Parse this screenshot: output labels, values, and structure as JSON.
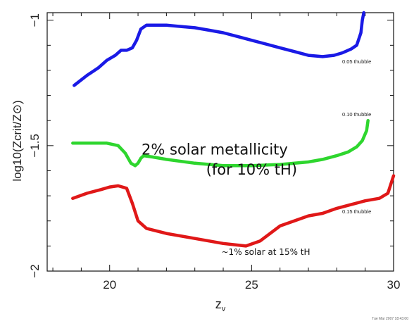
{
  "chart_data": {
    "type": "line",
    "xlabel": "z",
    "xlabel_sub": "v",
    "ylabel": "log10(Zcrit/Z⊙)",
    "xlim": [
      17.8,
      30
    ],
    "ylim": [
      -2,
      -0.97
    ],
    "x_ticks": [
      20,
      25,
      30
    ],
    "y_ticks": [
      -1,
      -1.5,
      -2
    ],
    "x_tick_labels": [
      "20",
      "25",
      "30"
    ],
    "y_tick_labels": [
      "−1",
      "−1.5",
      "−2"
    ],
    "series": [
      {
        "name": "0.05 thubble",
        "color": "#1a1ae6",
        "x": [
          18.75,
          19.2,
          19.6,
          19.9,
          20.2,
          20.4,
          20.6,
          20.8,
          20.95,
          21.1,
          21.3,
          21.6,
          22.0,
          22.5,
          23.0,
          23.5,
          24.0,
          24.5,
          25.0,
          25.5,
          26.0,
          26.5,
          27.0,
          27.5,
          27.9,
          28.2,
          28.5,
          28.7,
          28.85,
          28.9,
          28.95
        ],
        "values": [
          -1.26,
          -1.22,
          -1.19,
          -1.16,
          -1.14,
          -1.12,
          -1.12,
          -1.11,
          -1.08,
          -1.035,
          -1.02,
          -1.02,
          -1.02,
          -1.025,
          -1.03,
          -1.04,
          -1.05,
          -1.065,
          -1.08,
          -1.095,
          -1.11,
          -1.125,
          -1.14,
          -1.145,
          -1.14,
          -1.13,
          -1.115,
          -1.1,
          -1.05,
          -1.0,
          -0.97
        ]
      },
      {
        "name": "0.10 thubble",
        "color": "#2ed62e",
        "x": [
          18.7,
          19.3,
          19.9,
          20.3,
          20.55,
          20.75,
          20.9,
          21.0,
          21.1,
          21.2,
          21.5,
          22.0,
          23.0,
          24.0,
          25.0,
          26.0,
          27.0,
          27.5,
          28.0,
          28.4,
          28.7,
          28.9,
          29.05,
          29.1
        ],
        "values": [
          -1.49,
          -1.49,
          -1.49,
          -1.5,
          -1.53,
          -1.57,
          -1.58,
          -1.57,
          -1.55,
          -1.54,
          -1.545,
          -1.555,
          -1.57,
          -1.58,
          -1.58,
          -1.575,
          -1.565,
          -1.555,
          -1.54,
          -1.525,
          -1.505,
          -1.48,
          -1.44,
          -1.4
        ]
      },
      {
        "name": "0.15 thubble",
        "color": "#e01818",
        "x": [
          18.7,
          19.2,
          19.7,
          20.0,
          20.3,
          20.6,
          20.8,
          21.0,
          21.3,
          22.0,
          23.0,
          24.0,
          24.8,
          25.3,
          26.0,
          26.5,
          27.0,
          27.5,
          28.0,
          28.5,
          29.0,
          29.5,
          29.8,
          30.0
        ],
        "values": [
          -1.71,
          -1.69,
          -1.675,
          -1.665,
          -1.66,
          -1.67,
          -1.73,
          -1.8,
          -1.83,
          -1.85,
          -1.87,
          -1.89,
          -1.9,
          -1.88,
          -1.82,
          -1.8,
          -1.78,
          -1.77,
          -1.75,
          -1.735,
          -1.72,
          -1.71,
          -1.69,
          -1.62
        ]
      }
    ],
    "annotations": [
      {
        "text": "2% solar metallicity",
        "x": 23.7,
        "y": -1.535
      },
      {
        "text": "(for 10% tH)",
        "x": 25.0,
        "y": -1.615
      },
      {
        "text": "~1% solar at 15% tH",
        "x": 25.5,
        "y": -1.935
      }
    ]
  },
  "footer_text": "Tue Mar 2007 18:43:00"
}
